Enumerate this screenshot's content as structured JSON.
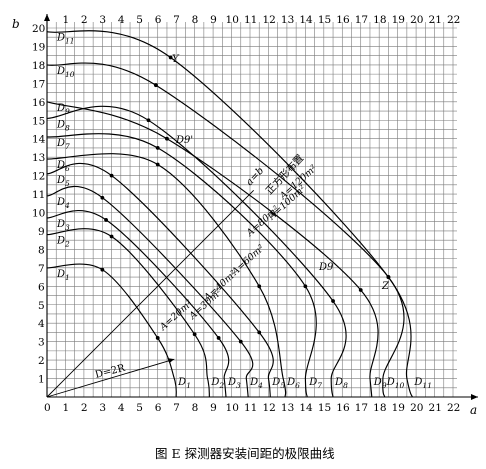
{
  "figure": {
    "caption": "图 E   探测器安装间距的极限曲线",
    "axis_a": "a",
    "axis_b": "b"
  },
  "axes": {
    "bottom_ticks": [
      "0",
      "1",
      "2",
      "3",
      "4",
      "5",
      "6",
      "7",
      "8",
      "9",
      "10",
      "11",
      "12",
      "13",
      "14",
      "15",
      "16",
      "17",
      "18",
      "19",
      "20",
      "21",
      "22"
    ],
    "top_ticks": [
      "1",
      "2",
      "3",
      "4",
      "5",
      "6",
      "7",
      "8",
      "9",
      "10",
      "11",
      "12",
      "13",
      "14",
      "15",
      "16",
      "17",
      "18",
      "19",
      "20",
      "21",
      "22"
    ],
    "left_ticks": [
      "1",
      "2",
      "3",
      "4",
      "5",
      "6",
      "7",
      "8",
      "9",
      "10",
      "11",
      "12",
      "13",
      "14",
      "15",
      "16",
      "17",
      "18",
      "19",
      "20"
    ]
  },
  "curve_labels": {
    "left": [
      "D1",
      "D2",
      "D3",
      "D4",
      "D5",
      "D6",
      "D7",
      "D8",
      "D9",
      "D10",
      "D11"
    ],
    "bottom": [
      "D1",
      "D2",
      "D3",
      "D4",
      "D5",
      "D6",
      "D7",
      "D8",
      "D9",
      "D10",
      "D11"
    ],
    "d9_prime": "D9'",
    "d9_mid": "D9"
  },
  "annotations": {
    "y_point": "Y",
    "z_point": "Z",
    "radius_line": "D=2R",
    "square_line_a": "a=b",
    "square_line_b": "正方形布置"
  },
  "area_labels": [
    "A=20m²",
    "A=30m²",
    "A=40m²",
    "A=60m²",
    "A=80m²",
    "A=100m²",
    "A=120m²"
  ],
  "chart_data": {
    "type": "line",
    "title": "",
    "xlabel": "a",
    "ylabel": "b",
    "xlim": [
      0,
      22
    ],
    "ylim": [
      0,
      20
    ],
    "grid": true,
    "series": [
      {
        "name": "D1",
        "x": [
          0,
          3,
          6.0,
          6.9,
          7.0
        ],
        "y": [
          7.0,
          6.9,
          3.2,
          1.0,
          0
        ]
      },
      {
        "name": "D2",
        "x": [
          0,
          3.5,
          8.0,
          8.7,
          8.8
        ],
        "y": [
          8.8,
          8.7,
          3.4,
          1.0,
          0
        ]
      },
      {
        "name": "D3",
        "x": [
          0,
          3.2,
          9.3,
          9.6,
          9.7
        ],
        "y": [
          9.7,
          9.6,
          3.2,
          1.0,
          0
        ]
      },
      {
        "name": "D4",
        "x": [
          0,
          3.0,
          10.5,
          10.8,
          10.9
        ],
        "y": [
          10.9,
          10.8,
          3.0,
          1.0,
          0
        ]
      },
      {
        "name": "D5",
        "x": [
          0,
          3.5,
          11.5,
          12.0,
          12.1
        ],
        "y": [
          12.1,
          12.0,
          3.5,
          1.0,
          0
        ]
      },
      {
        "name": "D6",
        "x": [
          0,
          6.0,
          11.5,
          12.8,
          12.9
        ],
        "y": [
          12.9,
          12.6,
          6.0,
          1.0,
          0
        ]
      },
      {
        "name": "D7",
        "x": [
          0,
          6.0,
          14.0,
          14.0,
          14.1
        ],
        "y": [
          14.1,
          13.5,
          6.0,
          1.0,
          0
        ]
      },
      {
        "name": "D8",
        "x": [
          0,
          5.5,
          15.5,
          15.4,
          15.5
        ],
        "y": [
          15.1,
          15.0,
          5.2,
          1.0,
          0
        ]
      },
      {
        "name": "D9",
        "x": [
          0,
          6.5,
          17.0,
          17.5,
          17.6
        ],
        "y": [
          16.0,
          14.0,
          5.8,
          1.0,
          0
        ]
      },
      {
        "name": "D10",
        "x": [
          0,
          5.9,
          18.5,
          18.2,
          18.3
        ],
        "y": [
          18.0,
          16.9,
          6.5,
          1.0,
          0
        ]
      },
      {
        "name": "D11",
        "x": [
          0,
          6.7,
          18.5,
          19.5,
          19.8
        ],
        "y": [
          19.8,
          18.4,
          6.5,
          1.0,
          0
        ]
      }
    ]
  }
}
